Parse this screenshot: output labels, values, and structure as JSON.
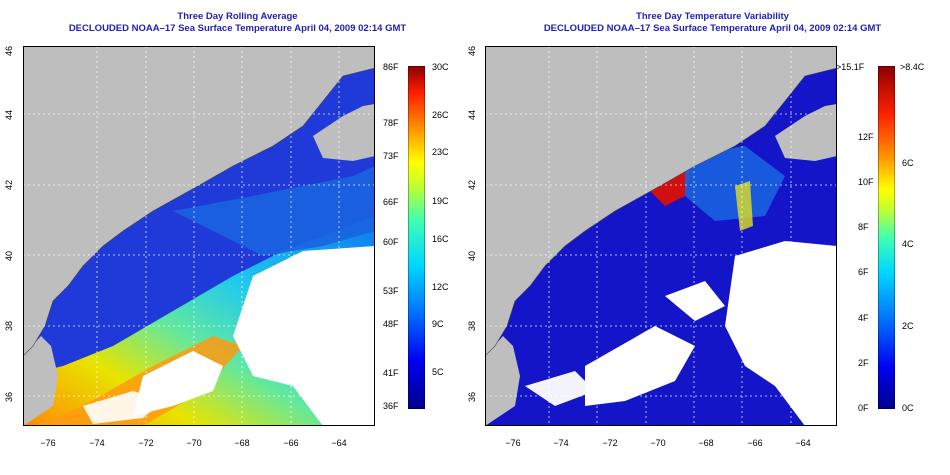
{
  "left_panel": {
    "title_line1": "Three Day Rolling Average",
    "title_line2": "DECLOUDED NOAA–17 Sea Surface Temperature April 04, 2009 02:14 GMT",
    "x_ticks": [
      "−76",
      "−74",
      "−72",
      "−70",
      "−68",
      "−66",
      "−64"
    ],
    "y_ticks": [
      "36",
      "38",
      "40",
      "42",
      "44",
      "46"
    ],
    "colorbar": {
      "f_labels": [
        "86F",
        "78F",
        "73F",
        "66F",
        "60F",
        "53F",
        "48F",
        "41F",
        "36F"
      ],
      "c_labels": [
        "30C",
        "26C",
        "23C",
        "19C",
        "16C",
        "12C",
        "9C",
        "5C"
      ]
    }
  },
  "right_panel": {
    "title_line1": "Three Day Temperature Variability",
    "title_line2": "DECLOUDED NOAA–17 Sea Surface Temperature April 04, 2009 02:14 GMT",
    "x_ticks": [
      "−76",
      "−74",
      "−72",
      "−70",
      "−68",
      "−66",
      "−64"
    ],
    "y_ticks": [
      "36",
      "38",
      "40",
      "42",
      "44",
      "46"
    ],
    "colorbar": {
      "f_labels": [
        ">15.1F",
        "12F",
        "10F",
        "8F",
        "6F",
        "4F",
        "2F",
        "0F"
      ],
      "c_labels": [
        ">8.4C",
        "6C",
        "4C",
        "2C",
        "0C"
      ]
    }
  },
  "colors": {
    "land": "#bebebe",
    "no_data": "#ffffff",
    "ocean_cold": "#1414c8",
    "title": "#1f1fb4"
  }
}
